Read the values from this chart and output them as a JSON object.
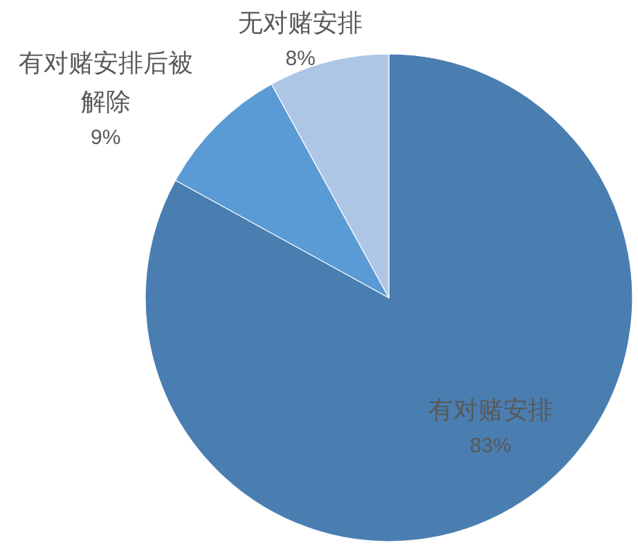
{
  "chart_data": {
    "type": "pie",
    "categories": [
      "有对赌安排",
      "有对赌安排后被解除",
      "无对赌安排"
    ],
    "values": [
      83,
      9,
      8
    ],
    "value_labels": [
      "83%",
      "9%",
      "8%"
    ],
    "colors": [
      "#4a7eb1",
      "#5b9bd5",
      "#adc6e5"
    ]
  }
}
